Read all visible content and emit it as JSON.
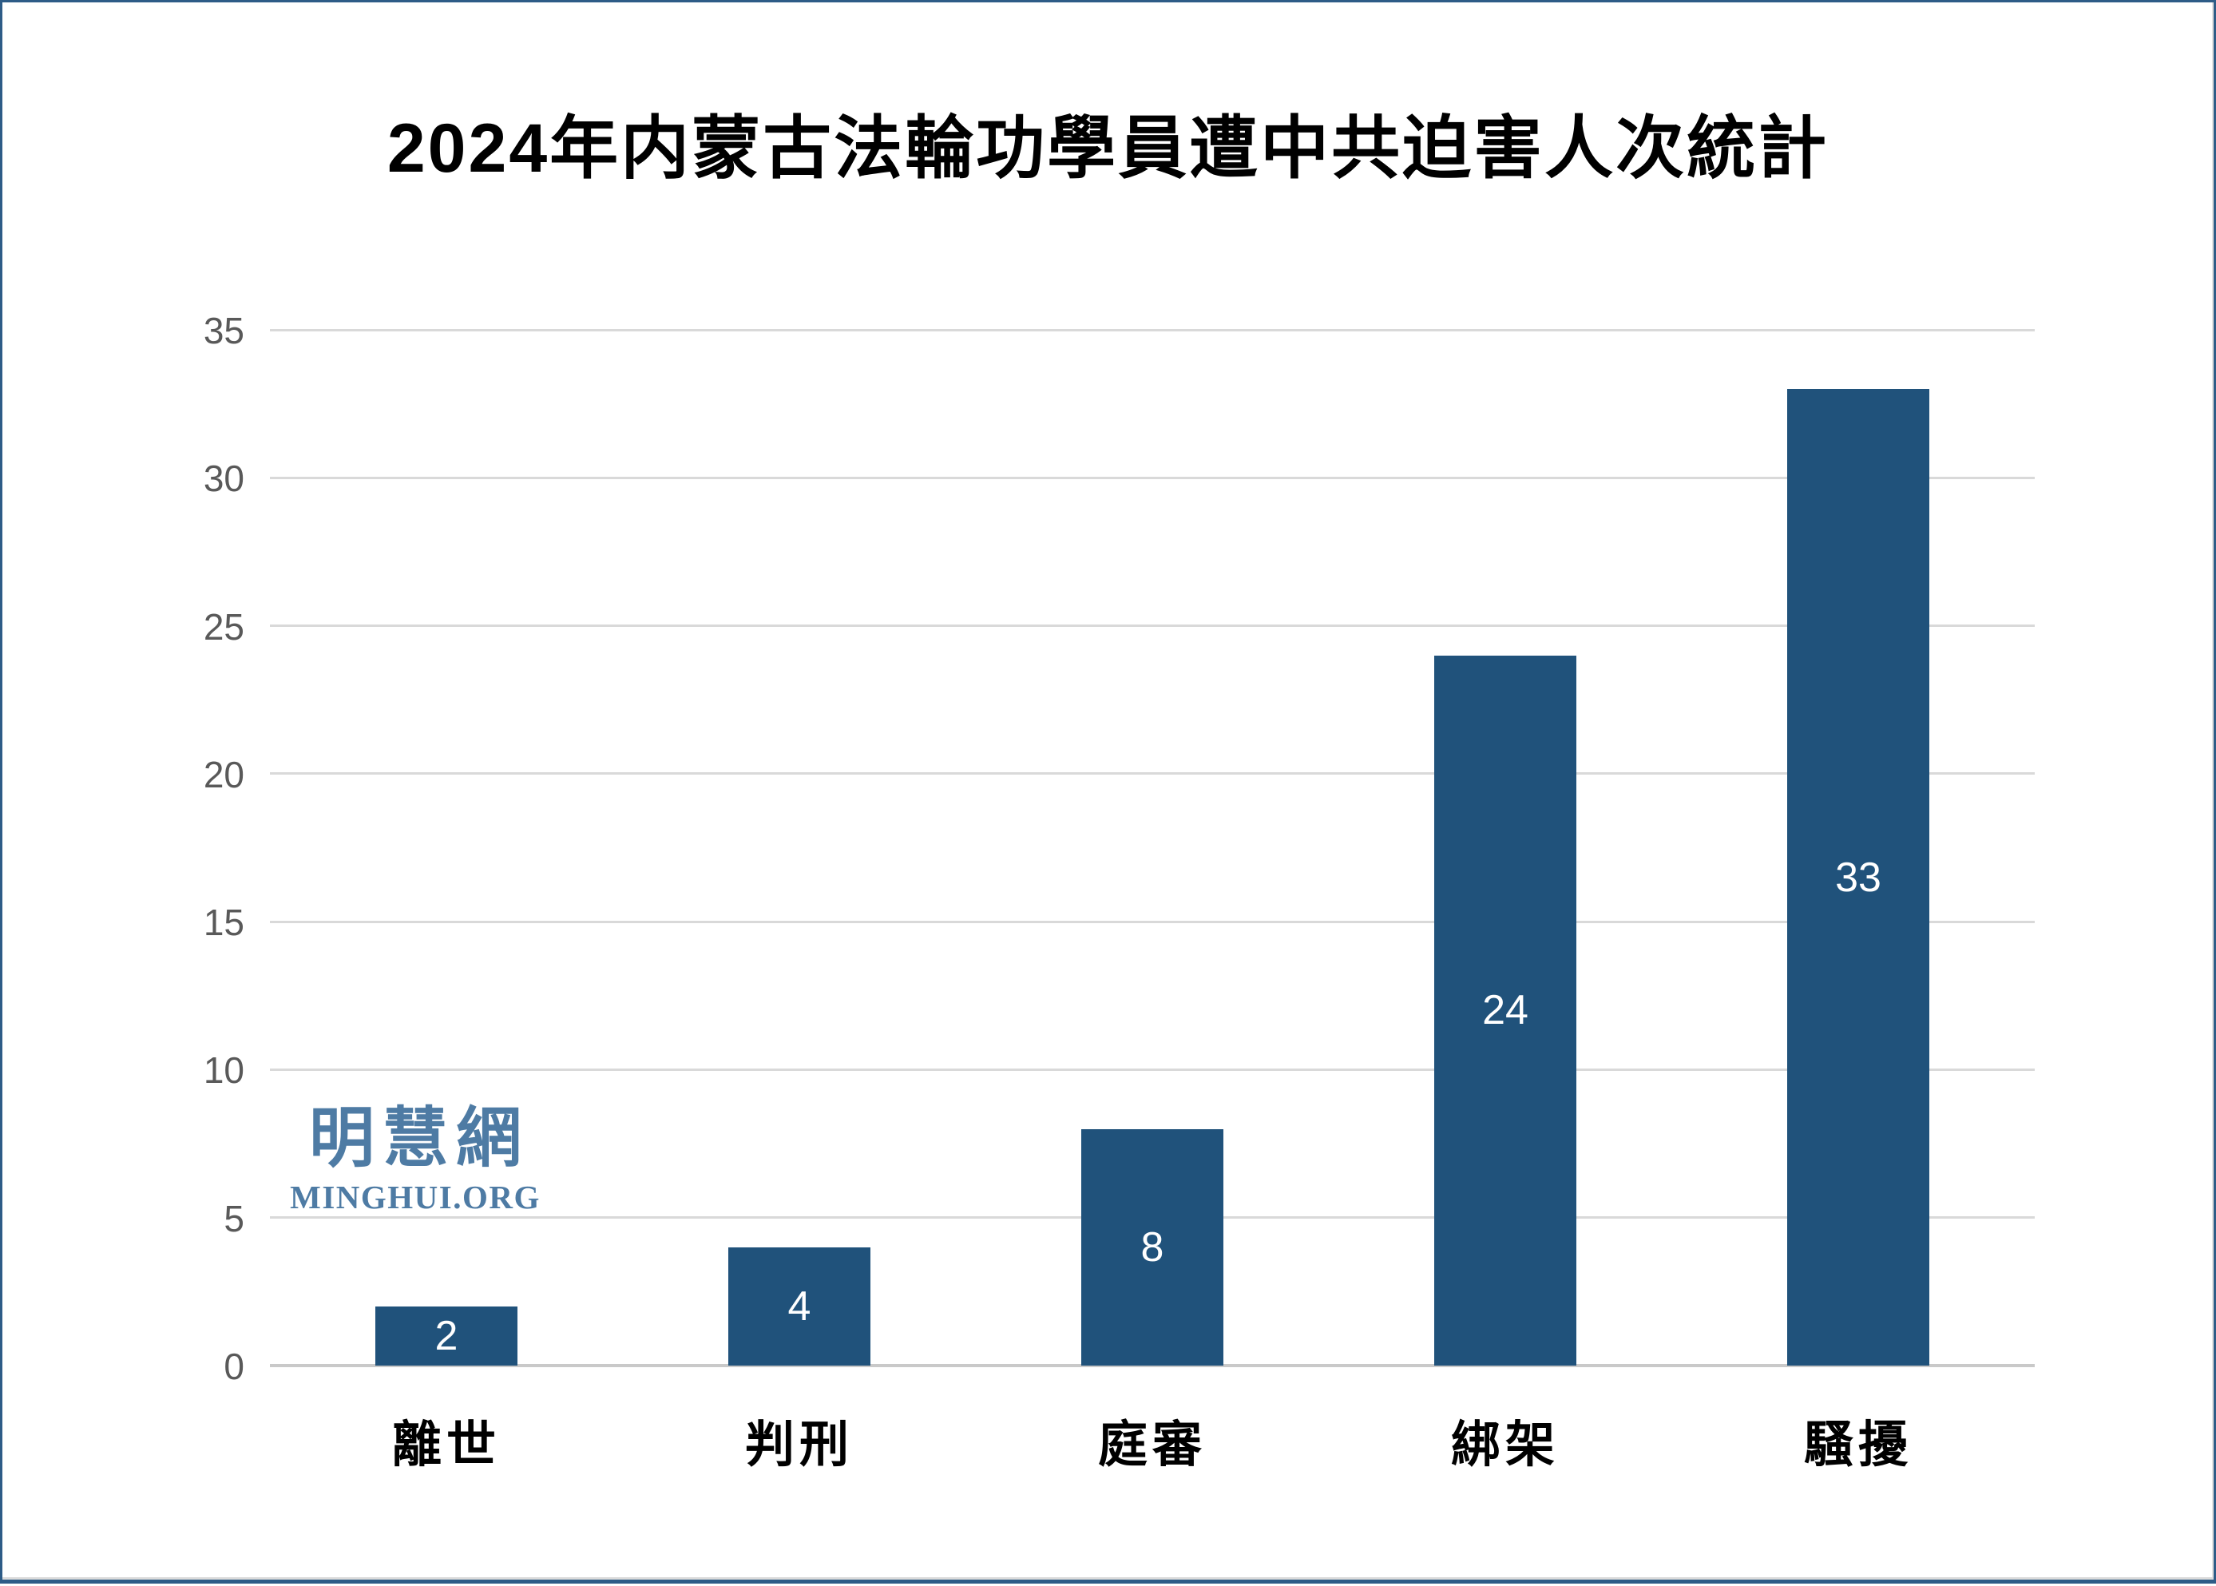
{
  "chart_data": {
    "type": "bar",
    "title": "2024年内蒙古法輪功學員遭中共迫害人次統計",
    "categories": [
      "離世",
      "判刑",
      "庭審",
      "綁架",
      "騷擾"
    ],
    "values": [
      2,
      4,
      8,
      24,
      33
    ],
    "xlabel": "",
    "ylabel": "",
    "ylim": [
      0,
      35
    ],
    "yticks": [
      0,
      5,
      10,
      15,
      20,
      25,
      30,
      35
    ],
    "grid": true,
    "legend_position": "none",
    "bar_color": "#20527b",
    "value_label_color": "#ffffff"
  },
  "watermark": {
    "zh": "明慧網",
    "en": "MINGHUI.ORG",
    "color": "#4e7ba4"
  },
  "frame": {
    "border_color": "#2e5c87"
  },
  "axis": {
    "tick_color": "#595959",
    "grid_color": "#d9d9d9"
  }
}
